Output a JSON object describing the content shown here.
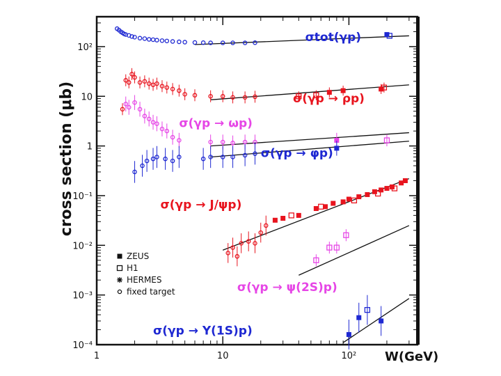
{
  "chart_data": {
    "type": "scatter",
    "xscale": "log",
    "yscale": "log",
    "xlim": [
      1,
      350
    ],
    "ylim": [
      0.0001,
      400
    ],
    "xlabel": "W(GeV)",
    "ylabel": "cross section (μb)",
    "xticks": [
      {
        "v": 1,
        "t": "1"
      },
      {
        "v": 10,
        "t": "10"
      },
      {
        "v": 100,
        "t": "10²"
      }
    ],
    "yticks": [
      {
        "v": 100,
        "t": "10²"
      },
      {
        "v": 10,
        "t": "10"
      },
      {
        "v": 1,
        "t": "1"
      },
      {
        "v": 0.1,
        "t": "10⁻¹"
      },
      {
        "v": 0.01,
        "t": "10⁻²"
      },
      {
        "v": 0.001,
        "t": "10⁻³"
      },
      {
        "v": 0.0001,
        "t": "10⁻⁴"
      }
    ],
    "colors": {
      "red": "#e8141e",
      "blue": "#1e28d2",
      "magenta": "#e646e6",
      "black": "#111111"
    },
    "process_labels": [
      {
        "text": "σtot(γp)",
        "color": "blue",
        "x": 45,
        "y": 130
      },
      {
        "text": "σ(γp → ρp)",
        "color": "red",
        "x": 36,
        "y": 7.5
      },
      {
        "text": "σ(γp → ωp)",
        "color": "magenta",
        "x": 4.5,
        "y": 2.4
      },
      {
        "text": "σ(γp → φp)",
        "color": "blue",
        "x": 20,
        "y": 0.6
      },
      {
        "text": "σ(γp → J/ψp)",
        "color": "red",
        "x": 3.2,
        "y": 0.055
      },
      {
        "text": "σ(γp → ψ(2S)p)",
        "color": "magenta",
        "x": 13,
        "y": 0.0012
      },
      {
        "text": "σ(γp → Υ(1S)p)",
        "color": "blue",
        "x": 2.8,
        "y": 0.00016
      }
    ],
    "legend": [
      {
        "marker": "filled-square",
        "label": "ZEUS"
      },
      {
        "marker": "open-square",
        "label": "H1"
      },
      {
        "marker": "star",
        "label": "HERMES"
      },
      {
        "marker": "open-circle",
        "label": "fixed target"
      }
    ],
    "fit_lines": [
      {
        "name": "tot",
        "color": "black",
        "x": [
          6,
          300
        ],
        "y": [
          110,
          165
        ]
      },
      {
        "name": "rho",
        "color": "black",
        "x": [
          8,
          300
        ],
        "y": [
          8.5,
          17
        ]
      },
      {
        "name": "omega",
        "color": "black",
        "x": [
          8,
          300
        ],
        "y": [
          1.0,
          1.85
        ]
      },
      {
        "name": "phi",
        "color": "black",
        "x": [
          8,
          300
        ],
        "y": [
          0.6,
          1.25
        ]
      },
      {
        "name": "jpsi",
        "color": "black",
        "x": [
          10,
          300
        ],
        "y": [
          0.008,
          0.22
        ]
      },
      {
        "name": "psi2s",
        "color": "black",
        "x": [
          40,
          300
        ],
        "y": [
          0.0025,
          0.025
        ]
      },
      {
        "name": "upsilon",
        "color": "black",
        "x": [
          90,
          300
        ],
        "y": [
          0.00011,
          0.00085
        ]
      }
    ],
    "series": [
      {
        "name": "tot-ft",
        "color": "blue",
        "marker": "open-circle",
        "points": [
          [
            1.45,
            230
          ],
          [
            1.5,
            215
          ],
          [
            1.55,
            200
          ],
          [
            1.6,
            190
          ],
          [
            1.65,
            180
          ],
          [
            1.7,
            175
          ],
          [
            1.8,
            168
          ],
          [
            1.9,
            160
          ],
          [
            2.0,
            155
          ],
          [
            2.2,
            148
          ],
          [
            2.4,
            145
          ],
          [
            2.6,
            140
          ],
          [
            2.8,
            138
          ],
          [
            3.0,
            135
          ],
          [
            3.3,
            132
          ],
          [
            3.6,
            130
          ],
          [
            4.0,
            127
          ],
          [
            4.5,
            125
          ],
          [
            5.0,
            123
          ],
          [
            6.0,
            121
          ],
          [
            7.0,
            120
          ],
          [
            8.0,
            119
          ],
          [
            10.0,
            119
          ],
          [
            12.0,
            119
          ],
          [
            15.0,
            119
          ],
          [
            18.0,
            120
          ]
        ]
      },
      {
        "name": "tot-zeus",
        "color": "blue",
        "marker": "filled-square",
        "points": [
          [
            200,
            175
          ]
        ]
      },
      {
        "name": "tot-h1",
        "color": "blue",
        "marker": "open-square",
        "points": [
          [
            210,
            165
          ]
        ]
      },
      {
        "name": "rho-ft",
        "color": "red",
        "marker": "open-circle",
        "err": 0.12,
        "points": [
          [
            1.6,
            5.5
          ],
          [
            1.7,
            21
          ],
          [
            1.8,
            19
          ],
          [
            1.9,
            28
          ],
          [
            2.0,
            24
          ],
          [
            2.2,
            19
          ],
          [
            2.4,
            20
          ],
          [
            2.6,
            18
          ],
          [
            2.8,
            17
          ],
          [
            3.0,
            18
          ],
          [
            3.3,
            16
          ],
          [
            3.6,
            15
          ],
          [
            4.0,
            14
          ],
          [
            4.5,
            13
          ],
          [
            5.0,
            11
          ],
          [
            6.0,
            10.5
          ],
          [
            8.0,
            10
          ],
          [
            10.0,
            10
          ],
          [
            12.0,
            9.5
          ],
          [
            15.0,
            9.5
          ],
          [
            18.0,
            9.8
          ]
        ]
      },
      {
        "name": "rho-zeus",
        "color": "red",
        "marker": "filled-square",
        "err": 0.1,
        "points": [
          [
            70,
            12
          ],
          [
            90,
            13
          ],
          [
            180,
            14
          ]
        ]
      },
      {
        "name": "rho-h1",
        "color": "red",
        "marker": "open-square",
        "err": 0.1,
        "points": [
          [
            40,
            10
          ],
          [
            55,
            10.5
          ],
          [
            190,
            15
          ]
        ]
      },
      {
        "name": "omega-ft",
        "color": "magenta",
        "marker": "open-circle",
        "err": 0.15,
        "points": [
          [
            1.7,
            7
          ],
          [
            1.8,
            6
          ],
          [
            2.0,
            7.5
          ],
          [
            2.2,
            5.5
          ],
          [
            2.4,
            4
          ],
          [
            2.6,
            3.5
          ],
          [
            2.8,
            3
          ],
          [
            3.0,
            2.8
          ],
          [
            3.3,
            2.2
          ],
          [
            3.6,
            2
          ],
          [
            4.0,
            1.5
          ],
          [
            4.5,
            1.3
          ],
          [
            8.0,
            1.2
          ],
          [
            10.0,
            1.2
          ],
          [
            12.0,
            1.15
          ],
          [
            15.0,
            1.2
          ],
          [
            18.0,
            1.2
          ]
        ]
      },
      {
        "name": "omega-zeus",
        "color": "magenta",
        "marker": "filled-square",
        "err": 0.15,
        "points": [
          [
            80,
            1.3
          ]
        ]
      },
      {
        "name": "omega-h1",
        "color": "magenta",
        "marker": "open-square",
        "err": 0.12,
        "points": [
          [
            200,
            1.3
          ]
        ]
      },
      {
        "name": "phi-ft",
        "color": "blue",
        "marker": "open-circle",
        "err": 0.22,
        "points": [
          [
            2.0,
            0.3
          ],
          [
            2.3,
            0.4
          ],
          [
            2.5,
            0.5
          ],
          [
            2.8,
            0.55
          ],
          [
            3.0,
            0.6
          ],
          [
            3.5,
            0.55
          ],
          [
            4.0,
            0.5
          ],
          [
            4.5,
            0.6
          ],
          [
            7.0,
            0.55
          ],
          [
            8.0,
            0.6
          ],
          [
            10.0,
            0.6
          ],
          [
            12.0,
            0.6
          ],
          [
            15.0,
            0.65
          ],
          [
            18.0,
            0.7
          ]
        ]
      },
      {
        "name": "phi-zeus",
        "color": "blue",
        "marker": "filled-square",
        "err": 0.15,
        "points": [
          [
            80,
            0.9
          ]
        ]
      },
      {
        "name": "jpsi-ft",
        "color": "red",
        "marker": "open-circle",
        "err": 0.2,
        "points": [
          [
            11,
            0.007
          ],
          [
            12,
            0.009
          ],
          [
            13,
            0.006
          ],
          [
            14,
            0.011
          ],
          [
            16,
            0.012
          ],
          [
            18,
            0.011
          ],
          [
            20,
            0.018
          ],
          [
            22,
            0.025
          ]
        ]
      },
      {
        "name": "jpsi-zeus",
        "color": "red",
        "marker": "filled-square",
        "points": [
          [
            26,
            0.032
          ],
          [
            30,
            0.035
          ],
          [
            40,
            0.04
          ],
          [
            55,
            0.055
          ],
          [
            65,
            0.06
          ],
          [
            75,
            0.07
          ],
          [
            90,
            0.075
          ],
          [
            100,
            0.085
          ],
          [
            120,
            0.095
          ],
          [
            140,
            0.105
          ],
          [
            160,
            0.12
          ],
          [
            180,
            0.13
          ],
          [
            200,
            0.14
          ],
          [
            220,
            0.15
          ],
          [
            260,
            0.18
          ],
          [
            280,
            0.2
          ]
        ]
      },
      {
        "name": "jpsi-h1",
        "color": "red",
        "marker": "open-square",
        "points": [
          [
            35,
            0.04
          ],
          [
            60,
            0.06
          ],
          [
            110,
            0.08
          ],
          [
            170,
            0.11
          ],
          [
            230,
            0.14
          ]
        ]
      },
      {
        "name": "psi2s-h1",
        "color": "magenta",
        "marker": "open-square",
        "err": 0.12,
        "points": [
          [
            55,
            0.005
          ],
          [
            70,
            0.009
          ],
          [
            80,
            0.009
          ],
          [
            95,
            0.016
          ]
        ]
      },
      {
        "name": "ups-zeus",
        "color": "blue",
        "marker": "filled-square",
        "err": 0.3,
        "points": [
          [
            100,
            0.00016
          ],
          [
            120,
            0.00035
          ],
          [
            180,
            0.0003
          ]
        ]
      },
      {
        "name": "ups-h1",
        "color": "blue",
        "marker": "open-square",
        "err": 0.3,
        "points": [
          [
            140,
            0.0005
          ]
        ]
      }
    ]
  }
}
